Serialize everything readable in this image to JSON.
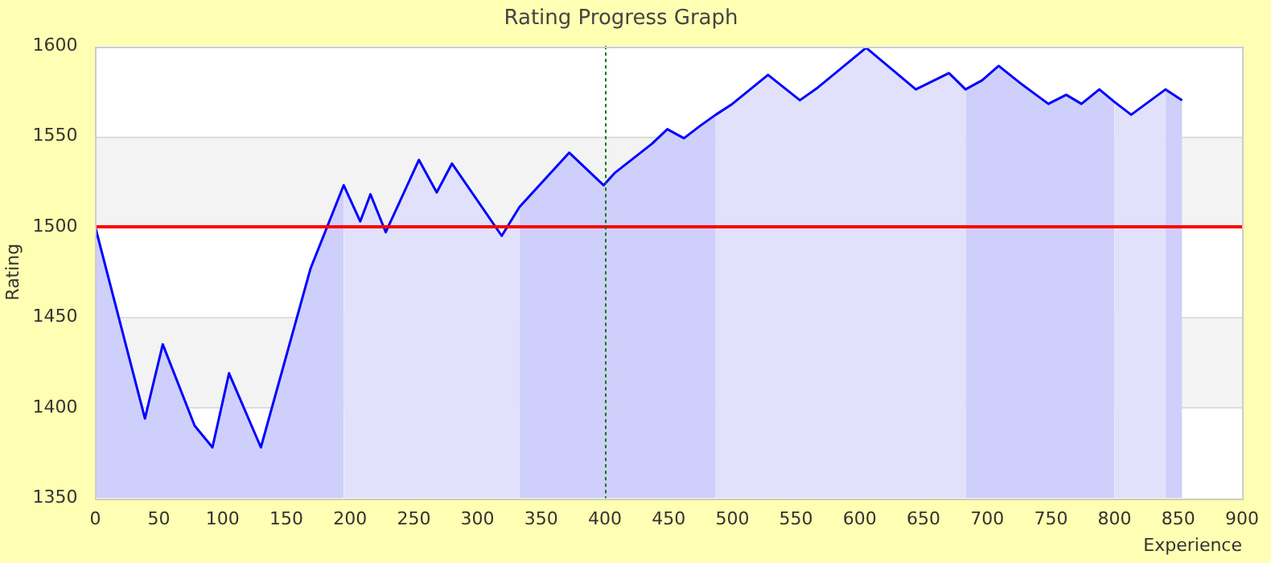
{
  "chart_data": {
    "type": "area",
    "title": "Rating Progress Graph",
    "xlabel": "Experience",
    "ylabel": "Rating",
    "xlim": [
      0,
      900
    ],
    "xticks": [
      0,
      50,
      100,
      150,
      200,
      250,
      300,
      350,
      400,
      450,
      500,
      550,
      600,
      650,
      700,
      750,
      800,
      850,
      900
    ],
    "ylim": [
      1350,
      1600
    ],
    "yticks": [
      1350,
      1400,
      1450,
      1500,
      1550,
      1600
    ],
    "grid": "y",
    "legend": false,
    "marker": "none",
    "line_style": "solid",
    "series": [
      {
        "color": "#cfcffb",
        "x": [
          0,
          39,
          53,
          78,
          92,
          105,
          130,
          169,
          195
        ],
        "values": [
          1500,
          1394,
          1435,
          1390,
          1378,
          1419,
          1378,
          1477,
          1523
        ]
      },
      {
        "color": "#e1e1fb",
        "x": [
          195,
          208,
          216,
          228,
          254,
          268,
          280,
          319,
          333
        ],
        "values": [
          1523,
          1503,
          1518,
          1497,
          1537,
          1519,
          1535,
          1495,
          1511
        ]
      },
      {
        "color": "#cfcffb",
        "x": [
          333,
          372,
          399,
          408,
          437,
          449,
          462,
          475,
          487
        ],
        "values": [
          1511,
          1541,
          1523,
          1530,
          1546,
          1554,
          1549,
          1556,
          1562
        ]
      },
      {
        "color": "#e1e1fb",
        "x": [
          487,
          500,
          528,
          553,
          567,
          605,
          644,
          670,
          683
        ],
        "values": [
          1562,
          1568,
          1584,
          1570,
          1577,
          1599,
          1576,
          1585,
          1576
        ]
      },
      {
        "color": "#cfcffb",
        "x": [
          683,
          696,
          709,
          725,
          748,
          762,
          774,
          788,
          800
        ],
        "values": [
          1576,
          1581,
          1589,
          1580,
          1568,
          1573,
          1568,
          1576,
          1569
        ]
      },
      {
        "color": "#e1e1fb",
        "x": [
          800,
          813,
          840
        ],
        "values": [
          1569,
          1562,
          1576
        ]
      },
      {
        "color": "#cfcffb",
        "x": [
          840,
          853
        ],
        "values": [
          1576,
          1570
        ]
      },
      {
        "type": "line",
        "color": "#0000ff",
        "x": [
          0,
          39,
          53,
          78,
          92,
          105,
          130,
          169,
          195,
          208,
          216,
          228,
          254,
          268,
          280,
          319,
          333,
          372,
          399,
          408,
          437,
          449,
          462,
          475,
          487,
          500,
          528,
          553,
          567,
          605,
          644,
          670,
          683,
          696,
          709,
          725,
          748,
          762,
          774,
          788,
          800,
          813,
          840,
          853
        ],
        "values": [
          1500,
          1394,
          1435,
          1390,
          1378,
          1419,
          1378,
          1477,
          1523,
          1503,
          1518,
          1497,
          1537,
          1519,
          1535,
          1495,
          1511,
          1541,
          1523,
          1530,
          1546,
          1554,
          1549,
          1556,
          1562,
          1568,
          1584,
          1570,
          1577,
          1599,
          1576,
          1585,
          1576,
          1581,
          1589,
          1580,
          1568,
          1573,
          1568,
          1576,
          1569,
          1562,
          1576,
          1570
        ]
      }
    ],
    "bands": [
      {
        "axis": "y",
        "from": 1400,
        "to": 1450,
        "color": "#f3f3f3"
      },
      {
        "axis": "y",
        "from": 1500,
        "to": 1550,
        "color": "#f3f3f3"
      }
    ],
    "ref_lines": [
      {
        "axis": "y",
        "value": 1500,
        "color": "#ff0000",
        "line_style": "solid"
      },
      {
        "axis": "x",
        "value": 400,
        "color": "#007700",
        "line_style": "dotted"
      }
    ]
  }
}
